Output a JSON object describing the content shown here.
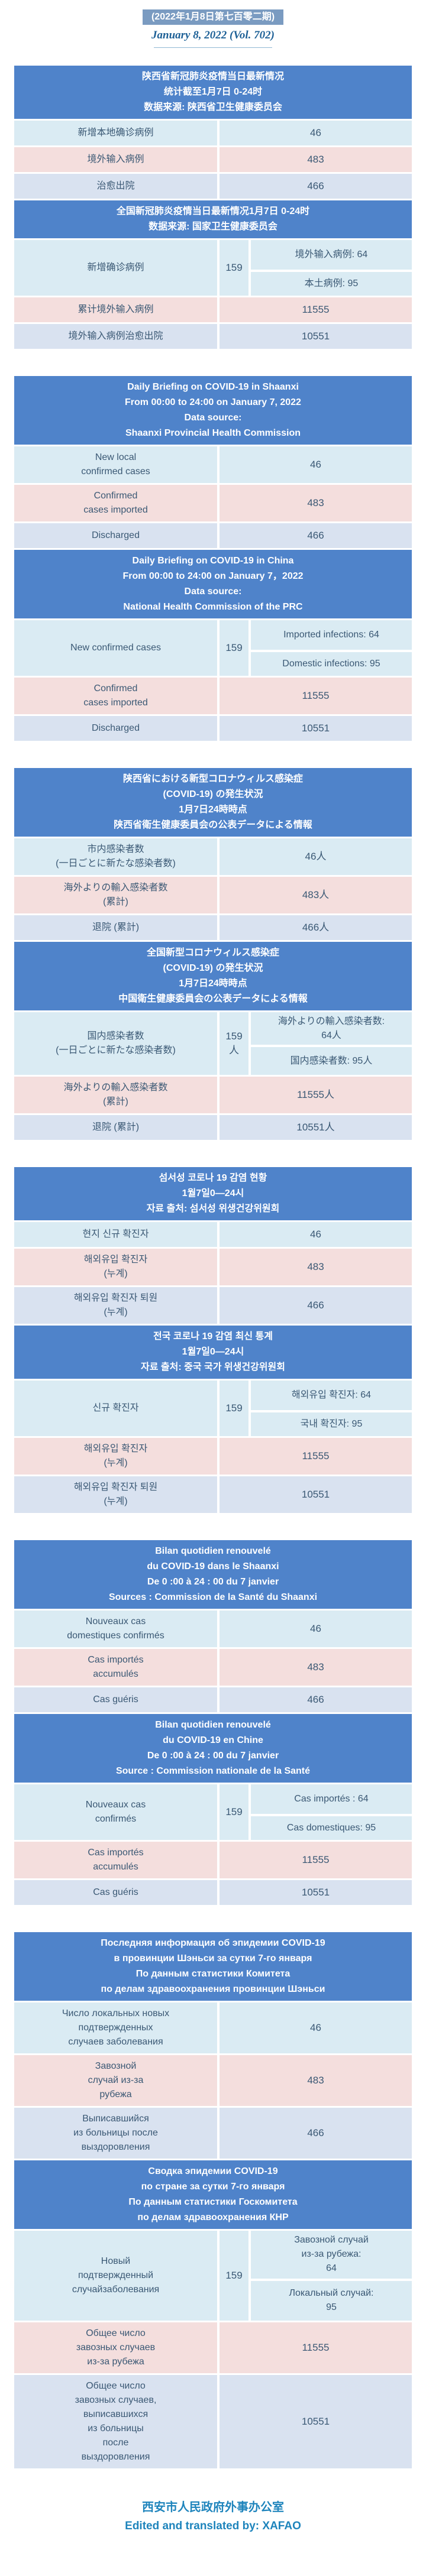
{
  "masthead": {
    "issue_cn": "(2022年1月8日第七百零二期)",
    "issue_en": "January 8, 2022 (Vol. 702)"
  },
  "footer": {
    "org_cn": "西安市人民政府外事办公室",
    "credit": "Edited and translated by: XAFAO"
  },
  "colors": {
    "banner_blue": "#4F83CA",
    "issue_box_blue": "#7A9BC1",
    "row_cyan": "#DAEBF3",
    "row_pink": "#F4DEDD",
    "row_lavender": "#D9E2F0",
    "cell_text": "#3A5874",
    "footer_blue": "#1E84BC",
    "date_blue": "#1D6096"
  },
  "sections": [
    {
      "id": "chinese",
      "tables": [
        {
          "id": "shaanxi",
          "header_lines": [
            "陕西省新冠肺炎疫情当日最新情况",
            "统计截至1月7日 0-24时",
            "数据来源: 陕西省卫生健康委员会"
          ],
          "rows": [
            {
              "tone": "cyan",
              "label_lines": [
                "新增本地确诊病例"
              ],
              "value": "46"
            },
            {
              "tone": "pink",
              "label_lines": [
                "境外输入病例"
              ],
              "value": "483"
            },
            {
              "tone": "lavender",
              "label_lines": [
                "治愈出院"
              ],
              "value": "466"
            }
          ]
        },
        {
          "id": "national",
          "header_lines": [
            "全国新冠肺炎疫情当日最新情况1月7日 0-24时",
            "数据来源: 国家卫生健康委员会"
          ],
          "rows": [
            {
              "tone": "cyan",
              "split": true,
              "label_lines": [
                "新增确诊病例"
              ],
              "total": "159",
              "top_lines": [
                "境外输入病例: 64"
              ],
              "bottom_lines": [
                "本土病例: 95"
              ]
            },
            {
              "tone": "pink",
              "label_lines": [
                "累计境外输入病例"
              ],
              "value": "11555"
            },
            {
              "tone": "lavender",
              "label_lines": [
                "境外输入病例治愈出院"
              ],
              "value": "10551"
            }
          ]
        }
      ]
    },
    {
      "id": "english",
      "tables": [
        {
          "id": "shaanxi",
          "header_lines": [
            "Daily Briefing on COVID-19 in Shaanxi",
            "From 00:00 to 24:00 on January 7, 2022",
            "Data source:",
            "Shaanxi Provincial Health Commission"
          ],
          "rows": [
            {
              "tone": "cyan",
              "label_lines": [
                "New local",
                "confirmed cases"
              ],
              "value": "46"
            },
            {
              "tone": "pink",
              "label_lines": [
                "Confirmed",
                "cases imported"
              ],
              "value": "483"
            },
            {
              "tone": "lavender",
              "label_lines": [
                "Discharged"
              ],
              "value": "466"
            }
          ]
        },
        {
          "id": "national",
          "header_lines": [
            "Daily Briefing on COVID-19 in China",
            "From 00:00 to 24:00 on  January 7，2022",
            "Data source:",
            "National Health Commission of the PRC"
          ],
          "rows": [
            {
              "tone": "cyan",
              "split": true,
              "label_lines": [
                "New confirmed cases"
              ],
              "total": "159",
              "top_lines": [
                "Imported infections: 64"
              ],
              "bottom_lines": [
                "Domestic infections: 95"
              ]
            },
            {
              "tone": "pink",
              "label_lines": [
                "Confirmed",
                "cases imported"
              ],
              "value": "11555"
            },
            {
              "tone": "lavender",
              "label_lines": [
                "Discharged"
              ],
              "value": "10551"
            }
          ]
        }
      ]
    },
    {
      "id": "japanese",
      "tables": [
        {
          "id": "shaanxi",
          "header_lines": [
            "陕西省における新型コロナウィルス感染症",
            "(COVID-19) の発生状況",
            "1月7日24時時点",
            "陕西省衛生健康委員会の公表データによる情報"
          ],
          "rows": [
            {
              "tone": "cyan",
              "label_lines": [
                "市内感染者数",
                "(一日ごとに新たな感染者数)"
              ],
              "value": "46人"
            },
            {
              "tone": "pink",
              "label_lines": [
                "海外よりの輸入感染者数",
                "(累計)"
              ],
              "value": "483人"
            },
            {
              "tone": "lavender",
              "label_lines": [
                "退院 (累計)"
              ],
              "value": "466人"
            }
          ]
        },
        {
          "id": "national",
          "header_lines": [
            "全国新型コロナウィルス感染症",
            "(COVID-19) の発生状況",
            "1月7日24時時点",
            "中国衛生健康委員会の公表データによる情報"
          ],
          "rows": [
            {
              "tone": "cyan",
              "split": true,
              "label_lines": [
                "国内感染者数",
                "(一日ごとに新たな感染者数)"
              ],
              "total": "159人",
              "top_lines": [
                "海外よりの輸入感染者数:",
                "64人"
              ],
              "bottom_lines": [
                "国内感染者数: 95人"
              ]
            },
            {
              "tone": "pink",
              "label_lines": [
                "海外よりの輸入感染者数",
                "(累計)"
              ],
              "value": "11555人"
            },
            {
              "tone": "lavender",
              "label_lines": [
                "退院 (累計)"
              ],
              "value": "10551人"
            }
          ]
        }
      ]
    },
    {
      "id": "korean",
      "tables": [
        {
          "id": "shaanxi",
          "header_lines": [
            "섬서성 코로나 19 감염 현황",
            "1월7일0—24시",
            "자료 출처: 섬서성 위생건강위원회"
          ],
          "rows": [
            {
              "tone": "cyan",
              "label_lines": [
                "현지 신규 확진자"
              ],
              "value": "46"
            },
            {
              "tone": "pink",
              "label_lines": [
                "해외유입 확진자",
                "(누계)"
              ],
              "value": "483"
            },
            {
              "tone": "lavender",
              "label_lines": [
                "해외유입 확진자 퇴원",
                "(누계)"
              ],
              "value": "466"
            }
          ]
        },
        {
          "id": "national",
          "header_lines": [
            "전국 코로나 19 감염 최신 통계",
            "1월7일0—24시",
            "자료 출처: 중국 국가 위생건강위원회"
          ],
          "rows": [
            {
              "tone": "cyan",
              "split": true,
              "label_lines": [
                "신규 확진자"
              ],
              "total": "159",
              "top_lines": [
                "해외유입 확진자:  64"
              ],
              "bottom_lines": [
                "국내 확진자:  95"
              ]
            },
            {
              "tone": "pink",
              "label_lines": [
                "해외유입 확진자",
                "(누계)"
              ],
              "value": "11555"
            },
            {
              "tone": "lavender",
              "label_lines": [
                "해외유입 확진자 퇴원",
                "(누계)"
              ],
              "value": "10551"
            }
          ]
        }
      ]
    },
    {
      "id": "french",
      "tables": [
        {
          "id": "shaanxi",
          "header_lines": [
            "Bilan quotidien renouvelé",
            "du COVID-19 dans le Shaanxi",
            "De 0 :00 à 24 : 00 du 7 janvier",
            "Sources : Commission de la Santé du Shaanxi"
          ],
          "rows": [
            {
              "tone": "cyan",
              "label_lines": [
                "Nouveaux cas",
                "domestiques confirmés"
              ],
              "value": "46"
            },
            {
              "tone": "pink",
              "label_lines": [
                "Cas importés",
                "accumulés"
              ],
              "value": "483"
            },
            {
              "tone": "lavender",
              "label_lines": [
                "Cas guéris"
              ],
              "value": "466"
            }
          ]
        },
        {
          "id": "national",
          "header_lines": [
            "Bilan quotidien renouvelé",
            "du COVID-19 en Chine",
            "De 0 :00 à 24 : 00 du 7 janvier",
            "Source : Commission nationale de la Santé"
          ],
          "rows": [
            {
              "tone": "cyan",
              "split": true,
              "label_lines": [
                "Nouveaux cas",
                "confirmés"
              ],
              "total": "159",
              "top_lines": [
                "Cas importés : 64"
              ],
              "bottom_lines": [
                "Cas domestiques: 95"
              ]
            },
            {
              "tone": "pink",
              "label_lines": [
                "Cas importés",
                "accumulés"
              ],
              "value": "11555"
            },
            {
              "tone": "lavender",
              "label_lines": [
                "Cas guéris"
              ],
              "value": "10551"
            }
          ]
        }
      ]
    },
    {
      "id": "russian",
      "tables": [
        {
          "id": "shaanxi",
          "header_lines": [
            "Последняя информация об эпидемии COVID-19",
            "в провинции Шэньси за сутки 7-го января",
            "По данным статистики Комитета",
            "по делам здравоохранения провинции Шэньси"
          ],
          "rows": [
            {
              "tone": "cyan",
              "label_lines": [
                "Число локальных новых",
                "подтвержденных",
                "случаев заболевания"
              ],
              "value": "46"
            },
            {
              "tone": "pink",
              "label_lines": [
                "Завозной",
                "случай из-за",
                "рубежа"
              ],
              "value": "483"
            },
            {
              "tone": "lavender",
              "label_lines": [
                "Выписавшийся",
                "из больницы после",
                "выздоровления"
              ],
              "value": "466"
            }
          ]
        },
        {
          "id": "national",
          "header_lines": [
            "Сводка эпидемии COVID-19",
            "по стране за сутки 7-го января",
            "По данным статистики Госкомитета",
            "по делам здравоохранения КНР"
          ],
          "rows": [
            {
              "tone": "cyan",
              "split": true,
              "label_lines": [
                "Новый",
                "подтвержденный",
                "случайзаболевания"
              ],
              "total": "159",
              "top_lines": [
                "Завозной случай",
                "из-за рубежа:",
                "64"
              ],
              "bottom_lines": [
                "Локальный случай:",
                "95"
              ]
            },
            {
              "tone": "pink",
              "label_lines": [
                "Общее число",
                "завозных случаев",
                "из-за рубежа"
              ],
              "value": "11555"
            },
            {
              "tone": "lavender",
              "label_lines": [
                "Общее число",
                "завозных случаев,",
                "выписавшихся",
                "из больницы",
                "после",
                "выздоровления"
              ],
              "value": "10551"
            }
          ]
        }
      ]
    }
  ]
}
